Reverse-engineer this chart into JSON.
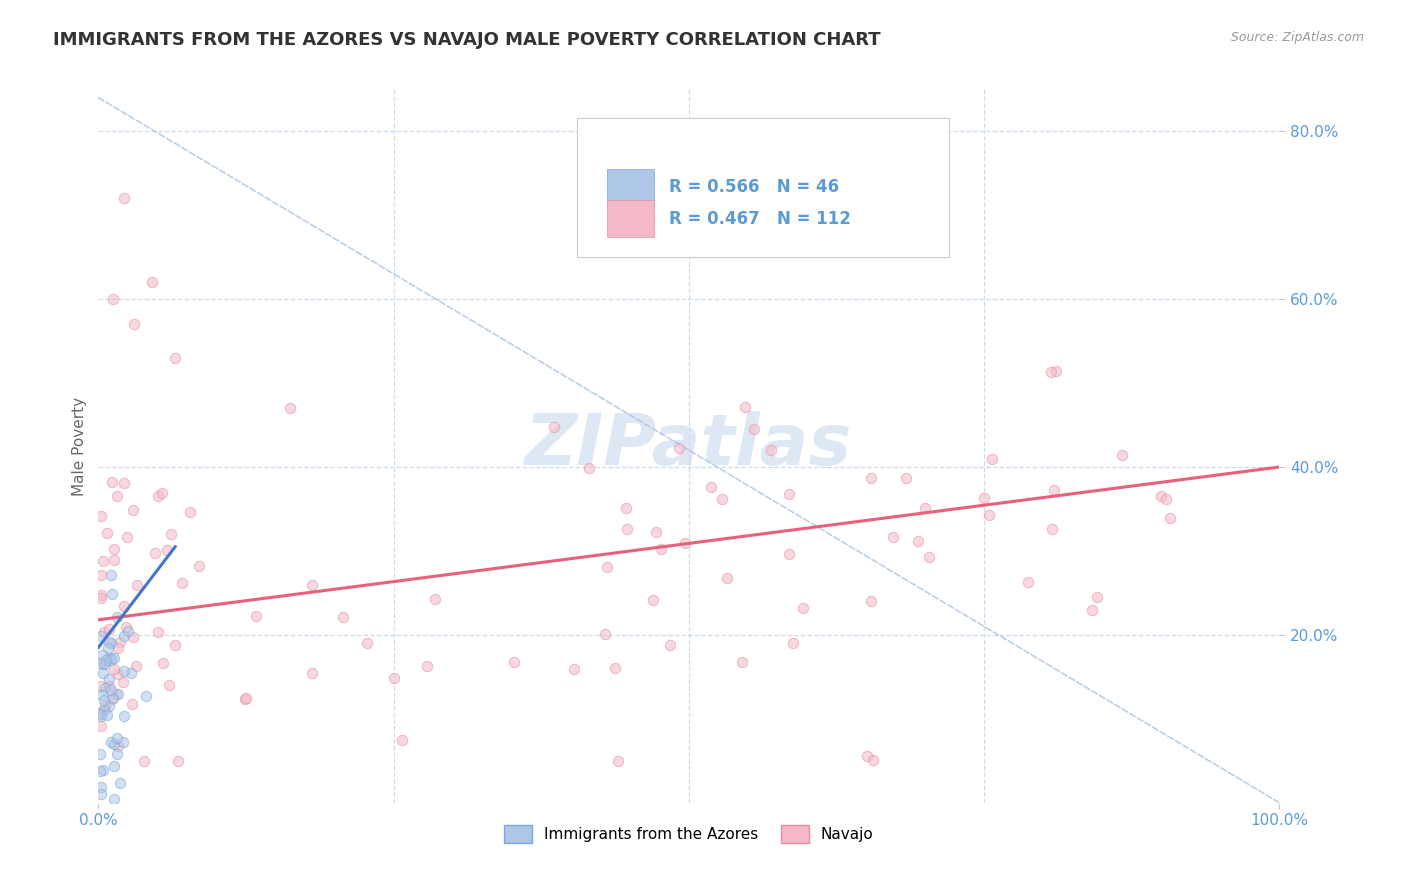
{
  "title": "IMMIGRANTS FROM THE AZORES VS NAVAJO MALE POVERTY CORRELATION CHART",
  "source": "Source: ZipAtlas.com",
  "ylabel": "Male Poverty",
  "xlim": [
    0.0,
    1.0
  ],
  "ylim": [
    0.0,
    0.85
  ],
  "ytick_values": [
    0.2,
    0.4,
    0.6,
    0.8
  ],
  "ytick_labels": [
    "20.0%",
    "40.0%",
    "60.0%",
    "80.0%"
  ],
  "xtick_values": [
    0.0,
    1.0
  ],
  "xtick_labels": [
    "0.0%",
    "100.0%"
  ],
  "legend_entries": [
    {
      "label": "Immigrants from the Azores",
      "color": "#aec6e8",
      "edge_color": "#7aa8d8",
      "R": 0.566,
      "N": 46
    },
    {
      "label": "Navajo",
      "color": "#f4b8c8",
      "edge_color": "#e890a0",
      "R": 0.467,
      "N": 112
    }
  ],
  "blue_line_x": [
    0.0,
    0.065
  ],
  "blue_line_y": [
    0.185,
    0.305
  ],
  "pink_line_x": [
    0.0,
    1.0
  ],
  "pink_line_y": [
    0.218,
    0.4
  ],
  "dash_line_from": [
    0.0,
    0.84
  ],
  "dash_line_to": [
    1.0,
    0.0
  ],
  "watermark_text": "ZIPatlas",
  "watermark_color": "#c8d8ee",
  "title_color": "#333333",
  "title_fontsize": 13,
  "axis_tick_color": "#5b9bd5",
  "grid_color": "#c8d8e8",
  "grid_linestyle": "--",
  "scatter_size": 55,
  "scatter_alpha": 0.55,
  "blue_line_color": "#4477cc",
  "pink_line_color": "#e8607a",
  "dash_line_color": "#aac4de",
  "legend_box_color": "#eeeeee",
  "legend_text_color": "#5b9bd5"
}
